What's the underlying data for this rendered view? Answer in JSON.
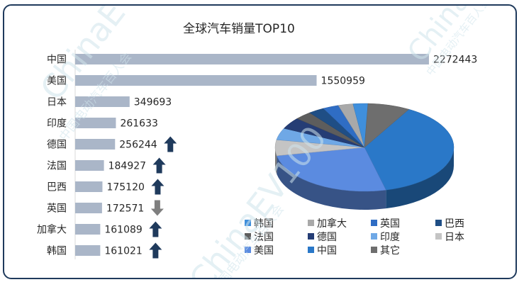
{
  "chart_data": [
    {
      "type": "bar",
      "orientation": "horizontal",
      "title": "全球汽车销量TOP10",
      "categories": [
        "中国",
        "美国",
        "日本",
        "印度",
        "德国",
        "法国",
        "巴西",
        "英国",
        "加拿大",
        "韩国"
      ],
      "values": [
        2272443,
        1550959,
        349693,
        261633,
        256244,
        184927,
        175120,
        172571,
        161089,
        161021
      ],
      "trend": [
        "",
        "",
        "",
        "",
        "up",
        "up",
        "up",
        "down",
        "up",
        "up"
      ],
      "bar_color": "#aab6c8",
      "up_color": "#1f3a5c",
      "down_color": "#7f7f7f",
      "xlim": [
        0,
        2300000
      ]
    },
    {
      "type": "pie",
      "style": "3d",
      "legend_position": "bottom",
      "series": [
        {
          "name": "中国",
          "value": 2272443,
          "color": "#2a78c8"
        },
        {
          "name": "美国",
          "value": 1550959,
          "color": "#5b8be0"
        },
        {
          "name": "日本",
          "value": 349693,
          "color": "#c4c4c4"
        },
        {
          "name": "印度",
          "value": 261633,
          "color": "#6fa8e6"
        },
        {
          "name": "德国",
          "value": 256244,
          "color": "#253d75"
        },
        {
          "name": "法国",
          "value": 184927,
          "color": "#5d5d5d"
        },
        {
          "name": "巴西",
          "value": 175120,
          "color": "#1f4e85"
        },
        {
          "name": "英国",
          "value": 172571,
          "color": "#2f6dc4"
        },
        {
          "name": "加拿大",
          "value": 161089,
          "color": "#a9a9a9"
        },
        {
          "name": "韩国",
          "value": 161021,
          "color": "#3f8fdc"
        },
        {
          "name": "其它",
          "value": 460000,
          "color": "#6e6e6e"
        }
      ],
      "legend": [
        {
          "name": "韩国",
          "color": "#3f8fdc"
        },
        {
          "name": "加拿大",
          "color": "#a9a9a9"
        },
        {
          "name": "英国",
          "color": "#2f6dc4"
        },
        {
          "name": "巴西",
          "color": "#1f4e85"
        },
        {
          "name": "法国",
          "color": "#5d5d5d"
        },
        {
          "name": "德国",
          "color": "#253d75"
        },
        {
          "name": "印度",
          "color": "#6fa8e6"
        },
        {
          "name": "日本",
          "color": "#c4c4c4"
        },
        {
          "name": "美国",
          "color": "#5b8be0"
        },
        {
          "name": "中国",
          "color": "#2a78c8"
        },
        {
          "name": "其它",
          "color": "#6e6e6e"
        }
      ]
    }
  ],
  "watermark": {
    "latin": "ChinaEV100",
    "cn": "中国电动汽车百人会"
  }
}
